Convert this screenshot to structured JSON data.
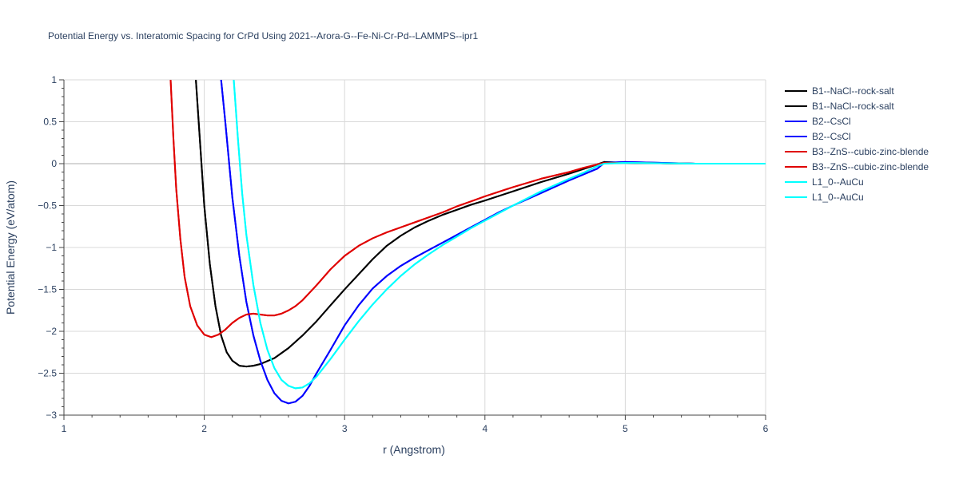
{
  "chart_data": {
    "type": "line",
    "title": "Potential Energy vs. Interatomic Spacing for CrPd Using 2021--Arora-G--Fe-Ni-Cr-Pd--LAMMPS--ipr1",
    "xlabel": "r (Angstrom)",
    "ylabel": "Potential Energy (eV/atom)",
    "xlim": [
      1,
      6
    ],
    "ylim": [
      -3,
      1
    ],
    "xticks": [
      1,
      2,
      3,
      4,
      5,
      6
    ],
    "xtick_labels": [
      "1",
      "2",
      "3",
      "4",
      "5",
      "6"
    ],
    "yticks": [
      1,
      0.5,
      0,
      -0.5,
      -1,
      -1.5,
      -2,
      -2.5,
      -3
    ],
    "ytick_labels": [
      "1",
      "0.5",
      "0",
      "−0.5",
      "−1",
      "−1.5",
      "−2",
      "−2.5",
      "−3"
    ],
    "grid": true,
    "legend_position": "right",
    "series": [
      {
        "name": "B1--NaCl--rock-salt",
        "color": "#000000",
        "x": [
          1.94,
          1.96,
          1.98,
          2.0,
          2.04,
          2.08,
          2.12,
          2.16,
          2.2,
          2.25,
          2.3,
          2.35,
          2.4,
          2.5,
          2.6,
          2.7,
          2.8,
          2.9,
          3.0,
          3.1,
          3.2,
          3.3,
          3.4,
          3.5,
          3.6,
          3.7,
          3.8,
          3.9,
          4.0,
          4.2,
          4.4,
          4.6,
          4.8,
          4.85,
          5.0,
          5.5,
          6.0
        ],
        "y": [
          1.0,
          0.5,
          0.0,
          -0.5,
          -1.2,
          -1.7,
          -2.05,
          -2.25,
          -2.35,
          -2.41,
          -2.42,
          -2.41,
          -2.39,
          -2.32,
          -2.2,
          -2.05,
          -1.88,
          -1.69,
          -1.5,
          -1.32,
          -1.14,
          -0.98,
          -0.86,
          -0.76,
          -0.68,
          -0.61,
          -0.55,
          -0.49,
          -0.44,
          -0.33,
          -0.22,
          -0.12,
          -0.01,
          0.02,
          0.01,
          0.0,
          0.0
        ]
      },
      {
        "name": "B1--NaCl--rock-salt",
        "color": "#000000",
        "x": [
          1.94,
          1.96,
          1.98,
          2.0,
          2.04,
          2.08,
          2.12,
          2.16,
          2.2,
          2.25,
          2.3,
          2.35,
          2.4,
          2.5,
          2.6,
          2.7,
          2.8,
          2.9,
          3.0,
          3.1,
          3.2,
          3.3,
          3.4,
          3.5,
          3.6,
          3.7,
          3.8,
          3.9,
          4.0,
          4.2,
          4.4,
          4.6,
          4.8,
          4.85,
          5.0,
          5.5,
          6.0
        ],
        "y": [
          1.0,
          0.5,
          0.0,
          -0.5,
          -1.2,
          -1.7,
          -2.05,
          -2.25,
          -2.35,
          -2.41,
          -2.42,
          -2.41,
          -2.39,
          -2.32,
          -2.2,
          -2.05,
          -1.88,
          -1.69,
          -1.5,
          -1.32,
          -1.14,
          -0.98,
          -0.86,
          -0.76,
          -0.68,
          -0.61,
          -0.55,
          -0.49,
          -0.44,
          -0.33,
          -0.22,
          -0.12,
          -0.01,
          0.02,
          0.01,
          0.0,
          0.0
        ]
      },
      {
        "name": "B2--CsCl",
        "color": "#0000ff",
        "x": [
          2.12,
          2.15,
          2.2,
          2.25,
          2.3,
          2.35,
          2.4,
          2.45,
          2.5,
          2.55,
          2.6,
          2.65,
          2.7,
          2.75,
          2.8,
          2.9,
          3.0,
          3.1,
          3.2,
          3.3,
          3.4,
          3.5,
          3.6,
          3.7,
          3.8,
          3.9,
          4.0,
          4.1,
          4.2,
          4.4,
          4.6,
          4.8,
          4.85,
          5.0,
          5.5,
          6.0
        ],
        "y": [
          1.0,
          0.5,
          -0.4,
          -1.1,
          -1.65,
          -2.05,
          -2.35,
          -2.58,
          -2.74,
          -2.83,
          -2.86,
          -2.84,
          -2.77,
          -2.65,
          -2.5,
          -2.22,
          -1.93,
          -1.69,
          -1.49,
          -1.34,
          -1.22,
          -1.12,
          -1.03,
          -0.94,
          -0.85,
          -0.76,
          -0.67,
          -0.58,
          -0.5,
          -0.35,
          -0.2,
          -0.06,
          0.01,
          0.02,
          0.0,
          0.0
        ]
      },
      {
        "name": "B2--CsCl",
        "color": "#0000ff",
        "x": [
          2.12,
          2.15,
          2.2,
          2.25,
          2.3,
          2.35,
          2.4,
          2.45,
          2.5,
          2.55,
          2.6,
          2.65,
          2.7,
          2.75,
          2.8,
          2.9,
          3.0,
          3.1,
          3.2,
          3.3,
          3.4,
          3.5,
          3.6,
          3.7,
          3.8,
          3.9,
          4.0,
          4.1,
          4.2,
          4.4,
          4.6,
          4.8,
          4.85,
          5.0,
          5.5,
          6.0
        ],
        "y": [
          1.0,
          0.5,
          -0.4,
          -1.1,
          -1.65,
          -2.05,
          -2.35,
          -2.58,
          -2.74,
          -2.83,
          -2.86,
          -2.84,
          -2.77,
          -2.65,
          -2.5,
          -2.22,
          -1.93,
          -1.69,
          -1.49,
          -1.34,
          -1.22,
          -1.12,
          -1.03,
          -0.94,
          -0.85,
          -0.76,
          -0.67,
          -0.58,
          -0.5,
          -0.35,
          -0.2,
          -0.06,
          0.01,
          0.02,
          0.0,
          0.0
        ]
      },
      {
        "name": "B3--ZnS--cubic-zinc-blende",
        "color": "#e00000",
        "x": [
          1.76,
          1.78,
          1.8,
          1.83,
          1.86,
          1.9,
          1.95,
          2.0,
          2.05,
          2.1,
          2.15,
          2.2,
          2.25,
          2.3,
          2.35,
          2.4,
          2.45,
          2.5,
          2.55,
          2.6,
          2.65,
          2.7,
          2.8,
          2.9,
          3.0,
          3.1,
          3.2,
          3.3,
          3.4,
          3.5,
          3.6,
          3.7,
          3.8,
          3.9,
          4.0,
          4.2,
          4.4,
          4.6,
          4.7,
          4.8,
          4.85,
          5.0,
          5.5,
          6.0
        ],
        "y": [
          1.0,
          0.3,
          -0.3,
          -0.9,
          -1.35,
          -1.7,
          -1.93,
          -2.04,
          -2.07,
          -2.04,
          -1.98,
          -1.9,
          -1.84,
          -1.8,
          -1.79,
          -1.8,
          -1.81,
          -1.81,
          -1.79,
          -1.75,
          -1.7,
          -1.63,
          -1.45,
          -1.26,
          -1.1,
          -0.98,
          -0.89,
          -0.82,
          -0.76,
          -0.7,
          -0.64,
          -0.58,
          -0.51,
          -0.45,
          -0.39,
          -0.28,
          -0.18,
          -0.1,
          -0.05,
          -0.01,
          0.01,
          0.01,
          0.0,
          0.0
        ]
      },
      {
        "name": "B3--ZnS--cubic-zinc-blende",
        "color": "#e00000",
        "x": [
          1.76,
          1.78,
          1.8,
          1.83,
          1.86,
          1.9,
          1.95,
          2.0,
          2.05,
          2.1,
          2.15,
          2.2,
          2.25,
          2.3,
          2.35,
          2.4,
          2.45,
          2.5,
          2.55,
          2.6,
          2.65,
          2.7,
          2.8,
          2.9,
          3.0,
          3.1,
          3.2,
          3.3,
          3.4,
          3.5,
          3.6,
          3.7,
          3.8,
          3.9,
          4.0,
          4.2,
          4.4,
          4.6,
          4.7,
          4.8,
          4.85,
          5.0,
          5.5,
          6.0
        ],
        "y": [
          1.0,
          0.3,
          -0.3,
          -0.9,
          -1.35,
          -1.7,
          -1.93,
          -2.04,
          -2.07,
          -2.04,
          -1.98,
          -1.9,
          -1.84,
          -1.8,
          -1.79,
          -1.8,
          -1.81,
          -1.81,
          -1.79,
          -1.75,
          -1.7,
          -1.63,
          -1.45,
          -1.26,
          -1.1,
          -0.98,
          -0.89,
          -0.82,
          -0.76,
          -0.7,
          -0.64,
          -0.58,
          -0.51,
          -0.45,
          -0.39,
          -0.28,
          -0.18,
          -0.1,
          -0.05,
          -0.01,
          0.01,
          0.01,
          0.0,
          0.0
        ]
      },
      {
        "name": "L1_0--AuCu",
        "color": "#00ffff",
        "x": [
          2.21,
          2.24,
          2.27,
          2.3,
          2.35,
          2.4,
          2.45,
          2.5,
          2.55,
          2.6,
          2.65,
          2.7,
          2.75,
          2.8,
          2.9,
          3.0,
          3.1,
          3.2,
          3.3,
          3.4,
          3.5,
          3.6,
          3.7,
          3.8,
          3.9,
          4.0,
          4.2,
          4.4,
          4.6,
          4.7,
          4.8,
          4.85,
          5.0,
          5.5,
          6.0
        ],
        "y": [
          1.0,
          0.3,
          -0.35,
          -0.85,
          -1.45,
          -1.9,
          -2.22,
          -2.44,
          -2.58,
          -2.65,
          -2.68,
          -2.67,
          -2.62,
          -2.54,
          -2.33,
          -2.1,
          -1.88,
          -1.68,
          -1.5,
          -1.34,
          -1.2,
          -1.08,
          -0.97,
          -0.87,
          -0.77,
          -0.68,
          -0.5,
          -0.33,
          -0.18,
          -0.11,
          -0.03,
          0.0,
          0.01,
          0.0,
          0.0
        ]
      },
      {
        "name": "L1_0--AuCu",
        "color": "#00ffff",
        "x": [
          2.21,
          2.24,
          2.27,
          2.3,
          2.35,
          2.4,
          2.45,
          2.5,
          2.55,
          2.6,
          2.65,
          2.7,
          2.75,
          2.8,
          2.9,
          3.0,
          3.1,
          3.2,
          3.3,
          3.4,
          3.5,
          3.6,
          3.7,
          3.8,
          3.9,
          4.0,
          4.2,
          4.4,
          4.6,
          4.7,
          4.8,
          4.85,
          5.0,
          5.5,
          6.0
        ],
        "y": [
          1.0,
          0.3,
          -0.35,
          -0.85,
          -1.45,
          -1.9,
          -2.22,
          -2.44,
          -2.58,
          -2.65,
          -2.68,
          -2.67,
          -2.62,
          -2.54,
          -2.33,
          -2.1,
          -1.88,
          -1.68,
          -1.5,
          -1.34,
          -1.2,
          -1.08,
          -0.97,
          -0.87,
          -0.77,
          -0.68,
          -0.5,
          -0.33,
          -0.18,
          -0.11,
          -0.03,
          0.0,
          0.01,
          0.0,
          0.0
        ]
      }
    ]
  }
}
